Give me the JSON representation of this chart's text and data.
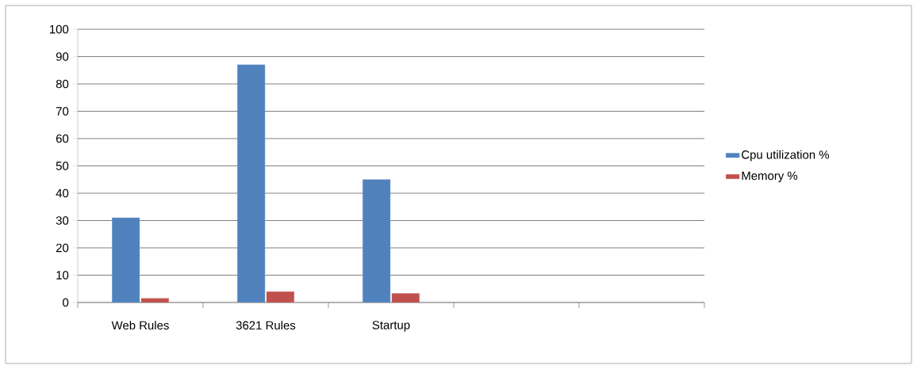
{
  "chart_data": {
    "type": "bar",
    "categories": [
      "Web Rules",
      "3621 Rules",
      "Startup",
      null,
      null
    ],
    "series": [
      {
        "name": "Cpu utilization %",
        "color": "#4f81bd",
        "values": [
          31,
          87,
          45,
          null,
          null
        ]
      },
      {
        "name": "Memory %",
        "color": "#c0504d",
        "values": [
          1.5,
          4,
          3.3,
          null,
          null
        ]
      }
    ],
    "ylim": [
      0,
      100
    ],
    "yticks": [
      0,
      10,
      20,
      30,
      40,
      50,
      60,
      70,
      80,
      90,
      100
    ],
    "grid": "y",
    "legend": "right"
  }
}
